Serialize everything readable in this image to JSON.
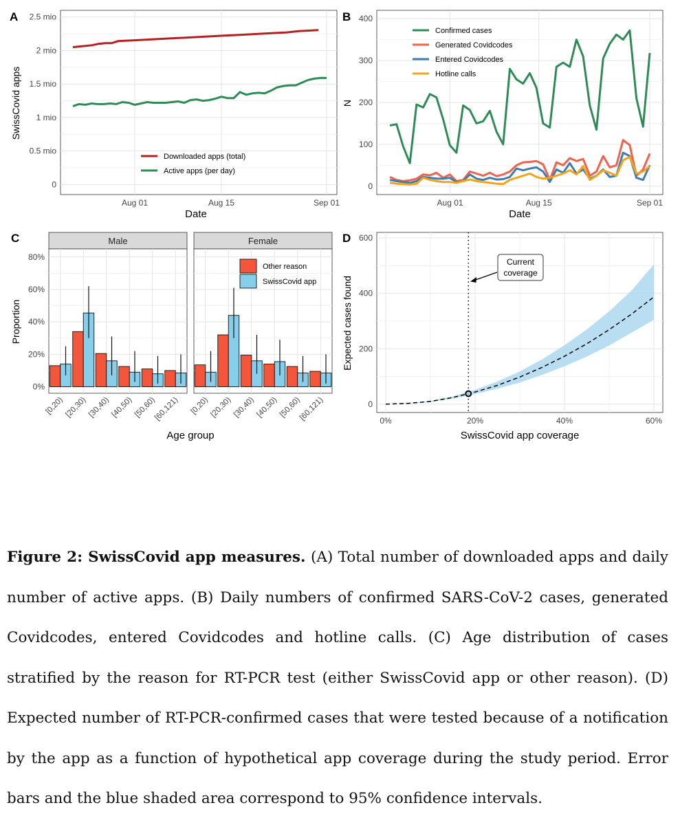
{
  "panels": {
    "A": {
      "letter": "A",
      "ylabel": "SwissCovid apps",
      "xlabel": "Date",
      "xticks": [
        "Aug 01",
        "Aug 15",
        "Sep 01"
      ],
      "yticks": [
        "0",
        "0.5 mio",
        "1 mio",
        "1.5 mio",
        "2 mio",
        "2.5 mio"
      ],
      "legend": [
        "Downloaded apps (total)",
        "Active apps (per day)"
      ],
      "colors": [
        "#b22222",
        "#2e8b57"
      ]
    },
    "B": {
      "letter": "B",
      "ylabel": "N",
      "xlabel": "Date",
      "xticks": [
        "Aug 01",
        "Aug 15",
        "Sep 01"
      ],
      "yticks": [
        "0",
        "100",
        "200",
        "300",
        "400"
      ],
      "legend": [
        "Confirmed cases",
        "Generated Covidcodes",
        "Entered Covidcodes",
        "Hotline calls"
      ],
      "colors": [
        "#2e8b57",
        "#f0624d",
        "#3e7cb1",
        "#f2a51a"
      ]
    },
    "C": {
      "letter": "C",
      "ylabel": "Proportion",
      "xlabel": "Age group",
      "facets": [
        "Male",
        "Female"
      ],
      "yticks": [
        "0%",
        "20%",
        "40%",
        "60%",
        "80%"
      ],
      "categories": [
        "[0,20)",
        "[20,30)",
        "[30,40)",
        "[40,50)",
        "[50,60)",
        "[60,121)"
      ],
      "legend": [
        "Other reason",
        "SwissCovid app"
      ],
      "colors": [
        "#f4563b",
        "#87ceeb"
      ]
    },
    "D": {
      "letter": "D",
      "ylabel": "Expected cases found",
      "xlabel": "SwissCovid app coverage",
      "xticks": [
        "0%",
        "20%",
        "40%",
        "60%"
      ],
      "yticks": [
        "0",
        "200",
        "400",
        "600"
      ],
      "annotation": [
        "Current",
        "coverage"
      ]
    }
  },
  "chart_data": [
    {
      "type": "line",
      "panel": "A",
      "xlabel": "Date",
      "ylabel": "SwissCovid apps",
      "ylim": [
        0,
        2.5
      ],
      "y_unit": "mio",
      "x_start": "2020-07-22",
      "series": [
        {
          "name": "Downloaded apps (total)",
          "values": [
            2.05,
            2.06,
            2.07,
            2.08,
            2.1,
            2.11,
            2.11,
            2.14,
            2.145,
            2.15,
            2.155,
            2.16,
            2.165,
            2.17,
            2.175,
            2.18,
            2.185,
            2.19,
            2.195,
            2.2,
            2.205,
            2.21,
            2.215,
            2.22,
            2.225,
            2.23,
            2.235,
            2.24,
            2.245,
            2.25,
            2.255,
            2.26,
            2.265,
            2.27,
            2.28,
            2.29,
            2.295,
            2.3,
            2.305
          ]
        },
        {
          "name": "Active apps (per day)",
          "values": [
            1.17,
            1.2,
            1.19,
            1.21,
            1.2,
            1.2,
            1.21,
            1.2,
            1.23,
            1.22,
            1.19,
            1.21,
            1.23,
            1.22,
            1.22,
            1.22,
            1.23,
            1.24,
            1.22,
            1.26,
            1.27,
            1.25,
            1.26,
            1.28,
            1.31,
            1.29,
            1.29,
            1.38,
            1.34,
            1.36,
            1.37,
            1.36,
            1.4,
            1.45,
            1.47,
            1.48,
            1.48,
            1.52,
            1.56,
            1.58,
            1.59,
            1.59
          ]
        }
      ]
    },
    {
      "type": "line",
      "panel": "B",
      "xlabel": "Date",
      "ylabel": "N",
      "ylim": [
        0,
        400
      ],
      "x_start": "2020-07-22",
      "series": [
        {
          "name": "Confirmed cases",
          "values": [
            145,
            148,
            95,
            55,
            195,
            188,
            220,
            212,
            160,
            98,
            80,
            193,
            182,
            150,
            155,
            180,
            130,
            100,
            280,
            255,
            245,
            270,
            235,
            150,
            140,
            285,
            295,
            285,
            350,
            310,
            193,
            135,
            305,
            340,
            362,
            350,
            372,
            210,
            142,
            318
          ]
        },
        {
          "name": "Generated Covidcodes",
          "values": [
            22,
            15,
            12,
            14,
            18,
            28,
            26,
            32,
            20,
            28,
            12,
            15,
            35,
            30,
            25,
            32,
            24,
            28,
            35,
            50,
            57,
            58,
            60,
            52,
            15,
            57,
            50,
            67,
            60,
            65,
            25,
            35,
            72,
            45,
            50,
            110,
            98,
            25,
            40,
            78
          ]
        },
        {
          "name": "Entered Covidcodes",
          "values": [
            15,
            12,
            10,
            8,
            12,
            22,
            20,
            18,
            18,
            20,
            10,
            12,
            28,
            18,
            15,
            20,
            16,
            17,
            22,
            42,
            38,
            42,
            45,
            35,
            10,
            40,
            32,
            55,
            30,
            40,
            18,
            25,
            40,
            22,
            25,
            80,
            72,
            20,
            15,
            50
          ]
        },
        {
          "name": "Hotline calls",
          "values": [
            8,
            6,
            5,
            4,
            6,
            20,
            15,
            12,
            10,
            10,
            8,
            12,
            16,
            12,
            10,
            8,
            6,
            5,
            15,
            20,
            25,
            30,
            22,
            18,
            20,
            25,
            30,
            38,
            28,
            48,
            15,
            25,
            38,
            32,
            25,
            62,
            70,
            30,
            35,
            48
          ]
        }
      ]
    },
    {
      "type": "bar",
      "panel": "C",
      "facet": "Male",
      "categories": [
        "[0,20)",
        "[20,30)",
        "[30,40)",
        "[40,50)",
        "[50,60)",
        "[60,121)"
      ],
      "ylim": [
        0,
        0.85
      ],
      "series": [
        {
          "name": "Other reason",
          "values": [
            0.13,
            0.34,
            0.205,
            0.125,
            0.11,
            0.1
          ]
        },
        {
          "name": "SwissCovid app",
          "values": [
            0.14,
            0.455,
            0.16,
            0.09,
            0.08,
            0.085
          ],
          "ci_low": [
            0.07,
            0.3,
            0.07,
            0.03,
            0.02,
            0.02
          ],
          "ci_high": [
            0.25,
            0.62,
            0.31,
            0.22,
            0.19,
            0.2
          ]
        }
      ]
    },
    {
      "type": "bar",
      "panel": "C",
      "facet": "Female",
      "categories": [
        "[0,20)",
        "[20,30)",
        "[30,40)",
        "[40,50)",
        "[50,60)",
        "[60,121)"
      ],
      "ylim": [
        0,
        0.85
      ],
      "series": [
        {
          "name": "Other reason",
          "values": [
            0.135,
            0.32,
            0.195,
            0.14,
            0.125,
            0.095
          ]
        },
        {
          "name": "SwissCovid app",
          "values": [
            0.09,
            0.44,
            0.16,
            0.155,
            0.085,
            0.085
          ],
          "ci_low": [
            0.03,
            0.3,
            0.08,
            0.07,
            0.03,
            0.02
          ],
          "ci_high": [
            0.22,
            0.61,
            0.32,
            0.29,
            0.19,
            0.2
          ]
        }
      ]
    },
    {
      "type": "line",
      "panel": "D",
      "xlabel": "SwissCovid app coverage",
      "ylabel": "Expected cases found",
      "xlim": [
        -0.02,
        0.62
      ],
      "ylim": [
        -30,
        620
      ],
      "current_coverage": 0.185,
      "current_value": 38,
      "curve": {
        "x": [
          0,
          0.05,
          0.1,
          0.15,
          0.185,
          0.2,
          0.25,
          0.3,
          0.35,
          0.4,
          0.45,
          0.5,
          0.55,
          0.6
        ],
        "y": [
          0,
          3,
          10,
          24,
          38,
          44,
          68,
          98,
          133,
          173,
          218,
          269,
          325,
          387
        ],
        "ci_low": [
          0,
          2,
          8,
          20,
          31,
          37,
          56,
          78,
          106,
          137,
          172,
          212,
          258,
          305
        ],
        "ci_high": [
          0,
          4,
          12,
          28,
          45,
          52,
          82,
          118,
          162,
          213,
          270,
          335,
          410,
          505
        ]
      }
    }
  ],
  "caption": {
    "label": "Figure 2: SwissCovid app measures.",
    "text": " (A) Total number of downloaded apps and daily number of active apps. (B) Daily numbers of confirmed SARS-CoV-2 cases, generated Covidcodes, entered Covidcodes and hotline calls. (C) Age distribution of cases stratified by the reason for RT-PCR test (either SwissCovid app or other reason). (D) Expected number of RT-PCR-confirmed cases that were tested because of a notification by the app as a function of hypothetical app coverage during the study period. Error bars and the blue shaded area correspond to 95% confidence intervals."
  }
}
